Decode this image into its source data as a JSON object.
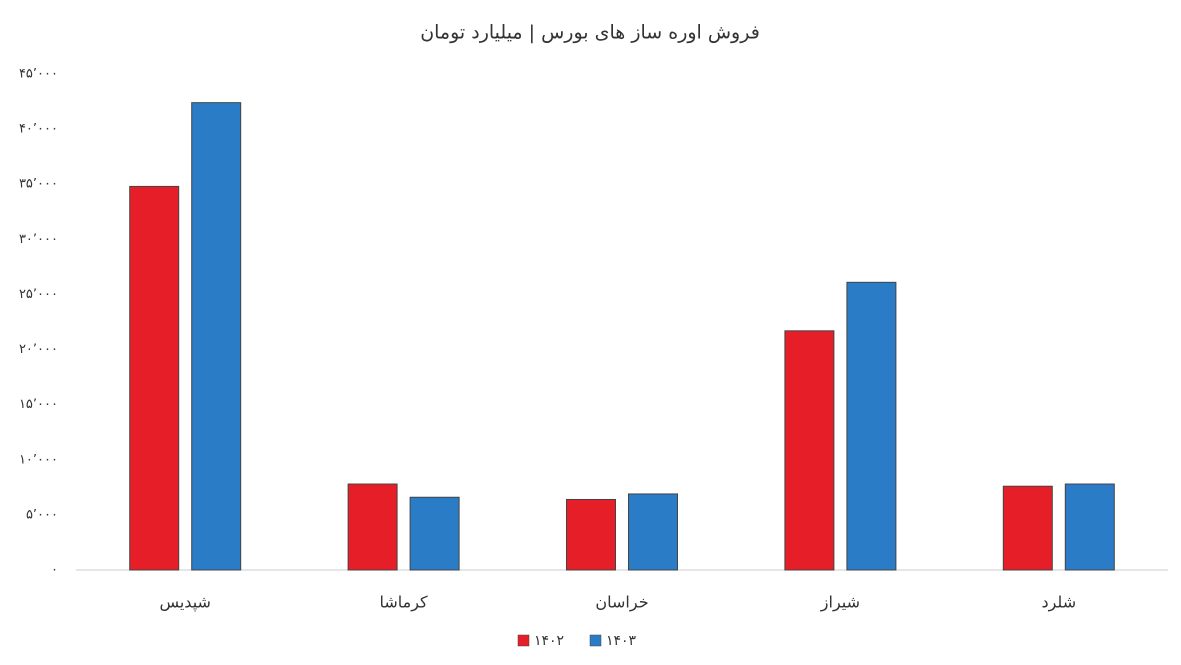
{
  "chart_data": {
    "type": "bar",
    "title": "فروش اوره ساز های بورس | میلیارد تومان",
    "categories": [
      "شپدیس",
      "کرماشا",
      "خراسان",
      "شیراز",
      "شلرد"
    ],
    "series": [
      {
        "name": "۱۴۰۲",
        "color": "#e61e27",
        "values": [
          34800,
          7800,
          6400,
          21700,
          7600
        ]
      },
      {
        "name": "۱۴۰۳",
        "color": "#2a7cc7",
        "values": [
          42400,
          6600,
          6900,
          26100,
          7800
        ]
      }
    ],
    "ylim": [
      0,
      45000
    ],
    "yticks": [
      {
        "value": 0,
        "label": "۰"
      },
      {
        "value": 5000,
        "label": "۵٬۰۰۰"
      },
      {
        "value": 10000,
        "label": "۱۰٬۰۰۰"
      },
      {
        "value": 15000,
        "label": "۱۵٬۰۰۰"
      },
      {
        "value": 20000,
        "label": "۲۰٬۰۰۰"
      },
      {
        "value": 25000,
        "label": "۲۵٬۰۰۰"
      },
      {
        "value": 30000,
        "label": "۳۰٬۰۰۰"
      },
      {
        "value": 35000,
        "label": "۳۵٬۰۰۰"
      },
      {
        "value": 40000,
        "label": "۴۰٬۰۰۰"
      },
      {
        "value": 45000,
        "label": "۴۵٬۰۰۰"
      }
    ],
    "grid": false,
    "legend": "bottom"
  }
}
